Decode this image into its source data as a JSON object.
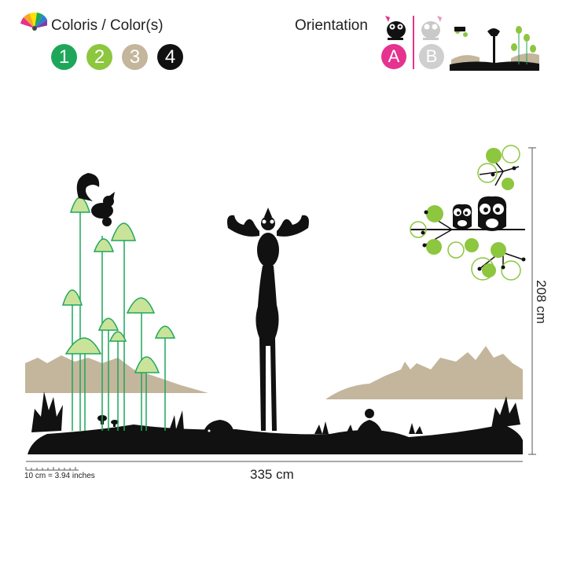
{
  "header": {
    "colors_label": "Coloris / Color(s)",
    "orientation_label": "Orientation"
  },
  "colors": [
    {
      "number": "1",
      "hex": "#1ea75a"
    },
    {
      "number": "2",
      "hex": "#8dc63f"
    },
    {
      "number": "3",
      "hex": "#c3b69c"
    },
    {
      "number": "4",
      "hex": "#111111"
    }
  ],
  "orientation": [
    {
      "letter": "A",
      "hex": "#e5338f"
    },
    {
      "letter": "B",
      "hex": "#cfcfcf"
    }
  ],
  "dimensions": {
    "width": "335 cm",
    "height": "208 cm",
    "scale": "10 cm = 3.94 inches"
  }
}
